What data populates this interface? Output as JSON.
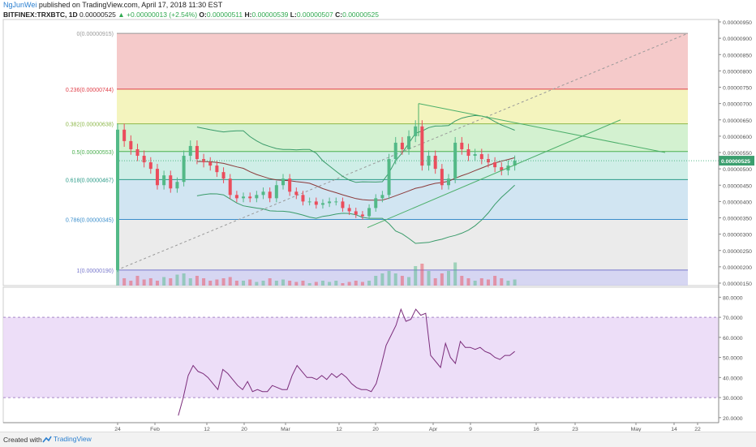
{
  "header": {
    "author": "NgJunWei",
    "published": "published on TradingView.com, April 17, 2018 11:30 EST",
    "symbol": "BITFINEX:TRXBTC, 1D",
    "last": "0.00000525",
    "change": "▲ +0.00000013 (+2.54%)",
    "o_label": "O:",
    "o": "0.00000511",
    "h_label": "H:",
    "h": "0.00000539",
    "l_label": "L:",
    "l": "0.00000507",
    "c_label": "C:",
    "c": "0.00000525"
  },
  "footer": {
    "created": "Created with",
    "brand": "TradingView"
  },
  "colors": {
    "up": "#53b987",
    "down": "#eb4d5c",
    "band": "#3a9b6a",
    "ma": "#8b3a3a",
    "rsi": "#7b2d7b",
    "trend": "#4caf6a",
    "fib_diag": "#999999"
  },
  "chart_data": [
    {
      "type": "candlestick",
      "title": "",
      "ylim": [
        1.5e-06,
        9.5e-06
      ],
      "y_ticks": [
        "0.00000950",
        "0.00000900",
        "0.00000850",
        "0.00000800",
        "0.00000750",
        "0.00000700",
        "0.00000650",
        "0.00000600",
        "0.00000550",
        "0.00000500",
        "0.00000450",
        "0.00000400",
        "0.00000350",
        "0.00000300",
        "0.00000250",
        "0.00000200",
        "0.00000150"
      ],
      "last_price_label": "0.00000525",
      "x_ticks": [
        "24",
        "Feb",
        "12",
        "20",
        "Mar",
        "12",
        "20",
        "Apr",
        "9",
        "16",
        "23",
        "May",
        "14",
        "22"
      ],
      "fib_levels": [
        {
          "label": "0(0.00000915)",
          "value": 9.15e-06,
          "color": "#999999",
          "fill": "#f2b8b8"
        },
        {
          "label": "0.236(0.00000744)",
          "value": 7.44e-06,
          "color": "#e0404a",
          "fill": "#f0f0a8"
        },
        {
          "label": "0.382(0.00000638)",
          "value": 6.38e-06,
          "color": "#8db84a",
          "fill": "#c4ecc0"
        },
        {
          "label": "0.5(0.00000553)",
          "value": 5.53e-06,
          "color": "#4caf50",
          "fill": "#bfe8df"
        },
        {
          "label": "0.618(0.00000467)",
          "value": 4.67e-06,
          "color": "#2a9b88",
          "fill": "#c2dcee"
        },
        {
          "label": "0.786(0.00000345)",
          "value": 3.45e-06,
          "color": "#3a8ecc",
          "fill": "#e4e4e4"
        },
        {
          "label": "1(0.00000190)",
          "value": 1.9e-06,
          "color": "#7777cc",
          "fill": "#c8c8ee"
        }
      ],
      "series": [
        {
          "name": "TRXBTC",
          "candles_close": [
            6.2e-06,
            5.85e-06,
            5.6e-06,
            5.4e-06,
            5.2e-06,
            5e-06,
            4.5e-06,
            4.8e-06,
            4.4e-06,
            4.6e-06,
            5.4e-06,
            5.7e-06,
            5.3e-06,
            5.2e-06,
            5.1e-06,
            4.9e-06,
            4.7e-06,
            4.2e-06,
            4.1e-06,
            4.15e-06,
            4.1e-06,
            4.2e-06,
            4.3e-06,
            4.1e-06,
            4.5e-06,
            4.7e-06,
            4.3e-06,
            4.2e-06,
            4e-06,
            4e-06,
            3.9e-06,
            3.95e-06,
            4e-06,
            4e-06,
            3.8e-06,
            3.7e-06,
            3.6e-06,
            3.55e-06,
            3.8e-06,
            4.1e-06,
            4.2e-06,
            5.3e-06,
            5.8e-06,
            5.6e-06,
            6e-06,
            6.3e-06,
            5.1e-06,
            5.4e-06,
            5e-06,
            4.5e-06,
            4.7e-06,
            5.8e-06,
            5.6e-06,
            5.4e-06,
            5.45e-06,
            5.3e-06,
            5.2e-06,
            5.05e-06,
            4.95e-06,
            5.1e-06,
            5.25e-06
          ],
          "volume_relative": [
            0.95,
            0.3,
            0.2,
            0.4,
            0.25,
            0.3,
            0.2,
            0.35,
            0.3,
            0.45,
            0.5,
            0.3,
            0.4,
            0.3,
            0.2,
            0.25,
            0.3,
            0.35,
            0.2,
            0.2,
            0.25,
            0.15,
            0.2,
            0.3,
            0.2,
            0.25,
            0.2,
            0.15,
            0.2,
            0.1,
            0.15,
            0.2,
            0.15,
            0.2,
            0.1,
            0.15,
            0.2,
            0.15,
            0.2,
            0.4,
            0.5,
            0.6,
            0.5,
            0.4,
            0.35,
            0.8,
            0.9,
            0.6,
            0.3,
            0.5,
            0.6,
            0.95,
            0.4,
            0.3,
            0.2,
            0.3,
            0.25,
            0.4,
            0.3,
            0.2,
            0.25
          ]
        }
      ]
    },
    {
      "type": "line",
      "title": "",
      "ylim": [
        17.5,
        85
      ],
      "y_ticks": [
        "80.0000",
        "70.0000",
        "60.0000",
        "50.0000",
        "40.0000",
        "30.0000",
        "20.0000"
      ],
      "band": [
        30,
        70
      ],
      "series": [
        {
          "name": "RSI",
          "x_start_day": 11,
          "values": [
            21,
            30,
            41,
            46,
            43,
            42,
            40,
            37,
            34,
            44,
            42,
            39,
            36,
            34,
            38,
            33,
            34,
            33,
            33,
            36,
            35,
            34,
            34,
            41,
            46,
            43,
            40,
            40,
            39,
            41,
            39,
            42,
            40,
            42,
            40,
            37,
            35,
            34,
            34,
            33,
            37,
            46,
            56,
            61,
            66,
            74,
            68,
            69,
            74,
            71,
            72,
            51,
            48,
            45,
            57,
            50,
            47,
            58,
            55,
            55,
            54,
            55,
            53,
            52,
            50,
            49,
            51,
            51,
            53
          ]
        }
      ]
    }
  ]
}
